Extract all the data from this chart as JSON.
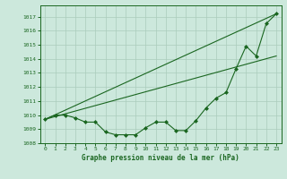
{
  "title": "Graphe pression niveau de la mer (hPa)",
  "bg_color": "#cce8dc",
  "grid_color": "#aaccbb",
  "line_color": "#1a6620",
  "marker_color": "#1a6620",
  "xlim": [
    -0.5,
    23.5
  ],
  "ylim": [
    1008.0,
    1017.8
  ],
  "yticks": [
    1008,
    1009,
    1010,
    1011,
    1012,
    1013,
    1014,
    1015,
    1016,
    1017
  ],
  "xticks": [
    0,
    1,
    2,
    3,
    4,
    5,
    6,
    7,
    8,
    9,
    10,
    11,
    12,
    13,
    14,
    15,
    16,
    17,
    18,
    19,
    20,
    21,
    22,
    23
  ],
  "series1_x": [
    0,
    23
  ],
  "series1_y": [
    1009.7,
    1017.2
  ],
  "series2_x": [
    0,
    23
  ],
  "series2_y": [
    1009.7,
    1014.2
  ],
  "series3_x": [
    0,
    1,
    2,
    3,
    4,
    5,
    6,
    7,
    8,
    9,
    10,
    11,
    12,
    13,
    14,
    15,
    16,
    17,
    18,
    19,
    20,
    21,
    22,
    23
  ],
  "series3_y": [
    1009.7,
    1010.0,
    1010.0,
    1009.8,
    1009.5,
    1009.5,
    1008.8,
    1008.6,
    1008.6,
    1008.6,
    1009.1,
    1009.5,
    1009.5,
    1008.9,
    1008.9,
    1009.6,
    1010.5,
    1011.2,
    1011.6,
    1013.3,
    1014.9,
    1014.2,
    1016.5,
    1017.2
  ]
}
